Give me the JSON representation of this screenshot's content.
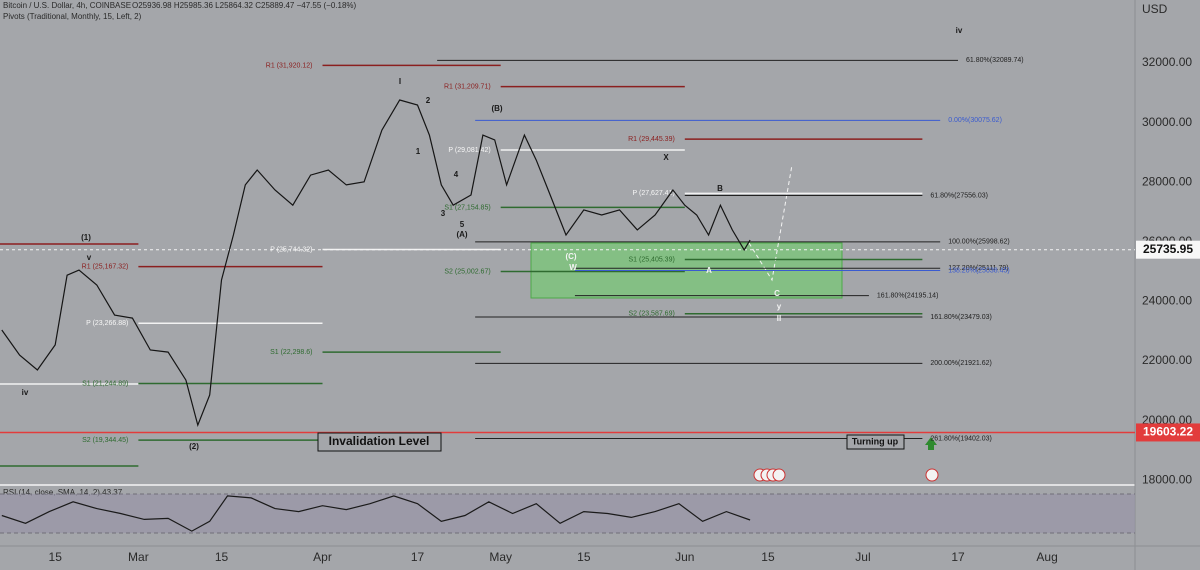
{
  "chart_data": [
    {
      "type": "line",
      "title": "Bitcoin / U.S. Dollar, 4h, COINBASE",
      "quote": "O25936.98 H25985.36 L25864.32 C25889.47 −47.55 (−0.18%)",
      "subtitle": "Pivots (Traditional, Monthly, 15, Left, 2)",
      "y_axis_label": "USD",
      "color": "#151515",
      "x": [
        37,
        40,
        43,
        46,
        48,
        50,
        53,
        56,
        59,
        62,
        65,
        68,
        70,
        72,
        74,
        76,
        78,
        80,
        83,
        86,
        89,
        92,
        95,
        98,
        101,
        104,
        107,
        109,
        111,
        113,
        116,
        118,
        120,
        122,
        125,
        127,
        129,
        132,
        135,
        138,
        141,
        144,
        147,
        150,
        152,
        154,
        156,
        158,
        160,
        162,
        163
      ],
      "values": [
        23040,
        22200,
        21700,
        22540,
        24880,
        25050,
        24550,
        23540,
        23440,
        22370,
        22300,
        21360,
        19850,
        20860,
        24720,
        26230,
        27910,
        28410,
        27740,
        27230,
        28240,
        28410,
        27910,
        28010,
        29750,
        30760,
        30590,
        29580,
        27910,
        27230,
        27570,
        29580,
        29420,
        27910,
        29580,
        28740,
        27740,
        26230,
        27070,
        26900,
        27070,
        26400,
        26900,
        27740,
        27230,
        26900,
        26230,
        27230,
        26400,
        25730,
        26060
      ],
      "xlim": [
        36.7,
        227.8
      ],
      "ylim": [
        17840,
        34115
      ],
      "xticks": [
        {
          "value": 46,
          "label": "15"
        },
        {
          "value": 60,
          "label": "Mar"
        },
        {
          "value": 74,
          "label": "15"
        },
        {
          "value": 91,
          "label": "Apr"
        },
        {
          "value": 107,
          "label": "17"
        },
        {
          "value": 121,
          "label": "May"
        },
        {
          "value": 135,
          "label": "15"
        },
        {
          "value": 152,
          "label": "Jun"
        },
        {
          "value": 166,
          "label": "15"
        },
        {
          "value": 182,
          "label": "Jul"
        },
        {
          "value": 198,
          "label": "17"
        },
        {
          "value": 213,
          "label": "Aug"
        }
      ],
      "yticks": [
        {
          "value": 18000,
          "label": "18000.00"
        },
        {
          "value": 20000,
          "label": "20000.00"
        },
        {
          "value": 22000,
          "label": "22000.00"
        },
        {
          "value": 24000,
          "label": "24000.00"
        },
        {
          "value": 26000,
          "label": "26000.00"
        },
        {
          "value": 28000,
          "label": "28000.00"
        },
        {
          "value": 30000,
          "label": "30000.00"
        },
        {
          "value": 32000,
          "label": "32000.00"
        }
      ],
      "last_price": 25735.95,
      "invalidation_price": 19603.22,
      "pivots": [
        {
          "value": 25926,
          "from": 36.7,
          "to": 60,
          "color": "#8b1f1f"
        },
        {
          "value": 21228,
          "from": 36.7,
          "to": 60,
          "color": "#f2f2f2"
        },
        {
          "value": 18477,
          "from": 36.7,
          "to": 60,
          "color": "#2f6b30"
        },
        {
          "label": "R1 (25,167.32)",
          "value": 25167.32,
          "from": 60,
          "to": 91,
          "color": "#8b1f1f"
        },
        {
          "label": "P (23,266.88)",
          "value": 23266.88,
          "from": 60,
          "to": 91,
          "color": "#f2f2f2"
        },
        {
          "label": "S1 (21,244.89)",
          "value": 21244.89,
          "from": 60,
          "to": 91,
          "color": "#2f6b30"
        },
        {
          "label": "S2 (19,344.45)",
          "value": 19344.45,
          "from": 60,
          "to": 91,
          "color": "#2f6b30"
        },
        {
          "label": "R1 (31,920.12)",
          "value": 31920.12,
          "from": 91,
          "to": 121,
          "color": "#8b1f1f"
        },
        {
          "label": "P (25,744.32)",
          "value": 25744.32,
          "from": 91,
          "to": 121,
          "color": "#f2f2f2"
        },
        {
          "label": "S1 (22,298.6)",
          "value": 22298.6,
          "from": 91,
          "to": 121,
          "color": "#2f6b30"
        },
        {
          "label": "R1 (31,209.71)",
          "value": 31209.71,
          "from": 121,
          "to": 152,
          "color": "#8b1f1f"
        },
        {
          "label": "P (29,081.42)",
          "value": 29081.42,
          "from": 121,
          "to": 152,
          "color": "#f2f2f2"
        },
        {
          "label": "S1 (27,154.85)",
          "value": 27154.85,
          "from": 121,
          "to": 152,
          "color": "#2f6b30"
        },
        {
          "label": "S2 (25,002.67)",
          "value": 25002.67,
          "from": 121,
          "to": 152,
          "color": "#2f6b30"
        },
        {
          "label": "R1 (29,445.39)",
          "value": 29445.39,
          "from": 152,
          "to": 192,
          "color": "#8b1f1f"
        },
        {
          "label": "P (27,627.41)",
          "value": 27627.41,
          "from": 152,
          "to": 192,
          "color": "#f2f2f2"
        },
        {
          "label": "S1 (25,405.39)",
          "value": 25405.39,
          "from": 152,
          "to": 192,
          "color": "#2f6b30"
        },
        {
          "label": "S2 (23,587.69)",
          "value": 23587.69,
          "from": 152,
          "to": 192,
          "color": "#2f6b30"
        }
      ],
      "fibs": [
        {
          "label": "61.80%(32089.74)",
          "value": 32089.74,
          "from": 110.3,
          "to": 198,
          "color": "#222222"
        },
        {
          "label": "0.00%(30075.62)",
          "value": 30075.62,
          "from": 116.7,
          "to": 195,
          "color": "#3a5bd0"
        },
        {
          "label": "61.80%(27556.03)",
          "value": 27556.03,
          "from": 152,
          "to": 192,
          "color": "#222222"
        },
        {
          "label": "100.00%(25998.62)",
          "value": 25998.62,
          "from": 116.7,
          "to": 195,
          "color": "#222222"
        },
        {
          "label": "127.20%(25111.79)",
          "value": 25111.79,
          "from": 133.2,
          "to": 195,
          "color": "#222222"
        },
        {
          "label": "138.20%(25038.45)",
          "value": 25038.45,
          "from": 133.5,
          "to": 195,
          "color": "#3a5bd0"
        },
        {
          "label": "161.80%(24195.14)",
          "value": 24195.14,
          "from": 133.5,
          "to": 183,
          "color": "#222222"
        },
        {
          "label": "161.80%(23479.03)",
          "value": 23479.03,
          "from": 116.7,
          "to": 192,
          "color": "#222222"
        },
        {
          "label": "200.00%(21921.62)",
          "value": 21921.62,
          "from": 116.7,
          "to": 192,
          "color": "#222222"
        },
        {
          "label": "261.80%(19402.03)",
          "value": 19402.03,
          "from": 116.7,
          "to": 192,
          "color": "#222222"
        }
      ],
      "annotations": [
        "I",
        "2",
        "1",
        "3",
        "4",
        "5",
        "(A)",
        "(B)",
        "(C)",
        "W",
        "X",
        "B",
        "A",
        "C",
        "y",
        "II",
        "iv",
        "(1)",
        "v",
        "iv",
        "(2)"
      ],
      "invalidation_text": "Invalidation Level",
      "turning_text": "Turning up"
    },
    {
      "type": "line",
      "title": "RSI (14, close, SMA, 14, 2) 43.37",
      "color": "#1a1a1a",
      "x": [
        37,
        41,
        45,
        49,
        53,
        57,
        61,
        65,
        69,
        72,
        75,
        79,
        83,
        87,
        91,
        95,
        99,
        103,
        107,
        111,
        115,
        119,
        123,
        127,
        131,
        135,
        139,
        143,
        147,
        151,
        155,
        159,
        163
      ],
      "values": [
        48,
        40,
        52,
        62,
        55,
        50,
        44,
        45,
        32,
        42,
        68,
        66,
        55,
        52,
        58,
        54,
        60,
        68,
        60,
        42,
        48,
        62,
        50,
        60,
        40,
        52,
        50,
        46,
        52,
        60,
        42,
        52,
        43.37
      ],
      "xlim": [
        36.7,
        227.8
      ],
      "ylim": [
        17.7,
        78.2
      ],
      "bands": [
        30,
        70
      ]
    }
  ]
}
